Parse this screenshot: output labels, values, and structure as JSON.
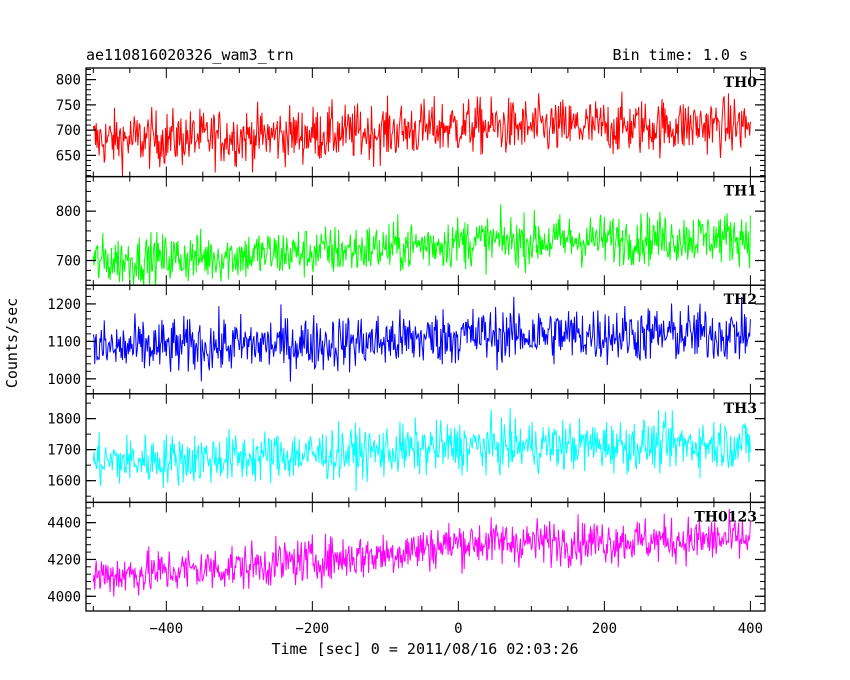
{
  "chart_data": {
    "type": "line",
    "title": "ae110816020326_wam3_trn",
    "bin_time": "Bin time: 1.0 s",
    "xlabel": "Time [sec] 0 = 2011/08/16 02:03:26",
    "ylabel": "Counts/sec",
    "xlim": [
      -510,
      420
    ],
    "x_ticks": [
      -400,
      -200,
      0,
      200,
      400
    ],
    "x_tick_labels": [
      "−400",
      "−200",
      "0",
      "200",
      "400"
    ],
    "x_range": [
      -500,
      400
    ],
    "bin_seconds": 1.0,
    "panels": [
      {
        "name": "TH0",
        "color": "#ff0000",
        "ylim": [
          608,
          823
        ],
        "yticks": [
          650,
          700,
          750,
          800
        ],
        "ytick_labels": [
          "650",
          "700",
          "750",
          "800"
        ],
        "trend": [
          [
            -500,
            680
          ],
          [
            -300,
            687
          ],
          [
            -100,
            697
          ],
          [
            0,
            708
          ],
          [
            100,
            705
          ],
          [
            400,
            710
          ]
        ],
        "noise": 28
      },
      {
        "name": "TH1",
        "color": "#00ff00",
        "ylim": [
          650,
          870
        ],
        "yticks": [
          700,
          800
        ],
        "ytick_labels": [
          "700",
          "800"
        ],
        "trend": [
          [
            -500,
            698
          ],
          [
            -300,
            710
          ],
          [
            -100,
            725
          ],
          [
            0,
            738
          ],
          [
            100,
            740
          ],
          [
            400,
            748
          ]
        ],
        "noise": 26
      },
      {
        "name": "TH2",
        "color": "#0000ff",
        "ylim": [
          960,
          1250
        ],
        "yticks": [
          1000,
          1100,
          1200
        ],
        "ytick_labels": [
          "1000",
          "1100",
          "1200"
        ],
        "trend": [
          [
            -500,
            1080
          ],
          [
            -300,
            1090
          ],
          [
            -100,
            1100
          ],
          [
            0,
            1115
          ],
          [
            100,
            1118
          ],
          [
            400,
            1120
          ]
        ],
        "noise": 38
      },
      {
        "name": "TH3",
        "color": "#00ffff",
        "ylim": [
          1530,
          1880
        ],
        "yticks": [
          1600,
          1700,
          1800
        ],
        "ytick_labels": [
          "1600",
          "1700",
          "1800"
        ],
        "trend": [
          [
            -500,
            1660
          ],
          [
            -300,
            1675
          ],
          [
            -100,
            1695
          ],
          [
            0,
            1710
          ],
          [
            100,
            1712
          ],
          [
            400,
            1720
          ]
        ],
        "noise": 42
      },
      {
        "name": "TH0123",
        "color": "#ff00ff",
        "ylim": [
          3920,
          4510
        ],
        "yticks": [
          4000,
          4200,
          4400
        ],
        "ytick_labels": [
          "4000",
          "4200",
          "4400"
        ],
        "trend": [
          [
            -500,
            4110
          ],
          [
            -300,
            4160
          ],
          [
            -100,
            4230
          ],
          [
            0,
            4290
          ],
          [
            100,
            4295
          ],
          [
            400,
            4310
          ]
        ],
        "noise": 62
      }
    ]
  }
}
